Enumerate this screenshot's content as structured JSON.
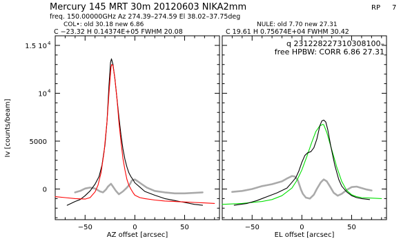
{
  "header": {
    "line1": "Mercury   145 MRT 30m   20120603 NIKA2mm",
    "rp_label": "RP",
    "rp_value": "7",
    "line2": "freq. 150.00000GHz  Az 274.39–274.59  El 38.02–37.75deg",
    "col_line": "COL•: old      30.18  new        6.86",
    "nule_line": "NULE: old        7.70  new        27.31",
    "left_fit": "C  −23.32           H   0.14374E+05        FWHM    20.08",
    "right_fit": "C   19.61           H   0.75674E+04        FWHM    30.42",
    "right_q": "q  231228227310308100–",
    "right_hpbw": "free HPBW: CORR    6.86    27.31"
  },
  "chart_data": [
    {
      "type": "line",
      "panel": "left",
      "xlabel": "AZ offset [arcsec]",
      "ylabel": "Iv [counts/beam]",
      "xlim": [
        -80,
        85
      ],
      "ylim": [
        -3200,
        16000
      ],
      "xticks": [
        -50,
        0,
        50
      ],
      "yticks": [
        {
          "value": 0,
          "label": "0"
        },
        {
          "value": 5000,
          "label": "5000"
        },
        {
          "value": 10000,
          "label": "10",
          "exp": "4"
        },
        {
          "value": 15000,
          "label": "1.5 10",
          "exp": "4"
        }
      ],
      "series": [
        {
          "color": "#aaaaaa",
          "width": 2.6,
          "x": [
            -60,
            -55,
            -50,
            -45,
            -40,
            -35,
            -32,
            -29,
            -27,
            -24,
            -22,
            -19,
            -16,
            -12,
            -8,
            -5,
            -3,
            0,
            3,
            7,
            12,
            20,
            30,
            40,
            50,
            60,
            68
          ],
          "y": [
            -350,
            -200,
            50,
            150,
            50,
            -250,
            -350,
            -50,
            250,
            550,
            250,
            -200,
            -550,
            -250,
            150,
            500,
            900,
            1000,
            800,
            500,
            150,
            -200,
            -350,
            -450,
            -450,
            -400,
            -350
          ]
        },
        {
          "color": "#000000",
          "width": 1.1,
          "x": [
            -68,
            -60,
            -55,
            -50,
            -45,
            -40,
            -36,
            -33,
            -30,
            -28,
            -26,
            -24.5,
            -23.5,
            -22,
            -20,
            -18,
            -16,
            -14,
            -12,
            -10,
            -8,
            -6,
            -4,
            -2,
            0,
            5,
            10,
            20,
            30,
            40,
            50,
            60,
            68
          ],
          "y": [
            -1700,
            -1300,
            -1100,
            -700,
            -200,
            500,
            1300,
            2500,
            4600,
            7000,
            10800,
            13200,
            13600,
            13000,
            11500,
            9500,
            7500,
            5700,
            4200,
            3100,
            2300,
            1700,
            1300,
            1000,
            650,
            200,
            -250,
            -650,
            -1000,
            -1200,
            -1400,
            -1600,
            -1700
          ]
        },
        {
          "color": "#ff0000",
          "width": 1.1,
          "x": [
            -80,
            -70,
            -60,
            -50,
            -45,
            -40,
            -37,
            -34,
            -31,
            -28,
            -26,
            -24,
            -23.3,
            -22,
            -20,
            -18,
            -16,
            -14,
            -12,
            -10,
            -8,
            -6,
            -4,
            -2,
            0,
            5,
            10,
            20,
            30,
            40,
            50,
            60,
            70,
            80
          ],
          "y": [
            -800,
            -900,
            -1000,
            -1050,
            -900,
            -300,
            400,
            1700,
            3800,
            7000,
            10000,
            12700,
            13000,
            12900,
            11500,
            9500,
            7000,
            5000,
            3200,
            2000,
            1000,
            400,
            0,
            -350,
            -650,
            -900,
            -1000,
            -1150,
            -1250,
            -1300,
            -1350,
            -1400,
            -1450,
            -1500
          ]
        }
      ]
    },
    {
      "type": "line",
      "panel": "right",
      "xlabel": "EL offset [arcsec]",
      "xlim": [
        -80,
        85
      ],
      "ylim": [
        -3200,
        16000
      ],
      "xticks": [
        -50,
        0,
        50
      ],
      "series": [
        {
          "color": "#aaaaaa",
          "width": 2.6,
          "x": [
            -70,
            -60,
            -50,
            -40,
            -30,
            -20,
            -15,
            -10,
            -7,
            -4,
            -1,
            1,
            4,
            8,
            12,
            15,
            19,
            22,
            25,
            28,
            32,
            36,
            40,
            45,
            50,
            55,
            60,
            65,
            70
          ],
          "y": [
            -300,
            -200,
            0,
            300,
            500,
            800,
            1100,
            1350,
            1300,
            900,
            -50,
            -500,
            -900,
            -1000,
            -600,
            0,
            700,
            1000,
            800,
            300,
            -400,
            -700,
            -500,
            -100,
            200,
            250,
            100,
            -50,
            -150
          ]
        },
        {
          "color": "#00e000",
          "width": 1.1,
          "x": [
            -80,
            -60,
            -40,
            -30,
            -20,
            -10,
            -5,
            0,
            5,
            10,
            14,
            18,
            21,
            22,
            25,
            30,
            35,
            40,
            45,
            50,
            55,
            60,
            70,
            80
          ],
          "y": [
            -1600,
            -1500,
            -1300,
            -1100,
            -700,
            100,
            900,
            2000,
            3400,
            4900,
            6000,
            6600,
            6750,
            6700,
            5900,
            4100,
            2300,
            800,
            -150,
            -600,
            -800,
            -900,
            -950,
            -1000
          ]
        },
        {
          "color": "#000000",
          "width": 1.1,
          "x": [
            -68,
            -55,
            -45,
            -35,
            -25,
            -15,
            -10,
            -6,
            -3,
            0,
            3,
            6,
            9,
            12,
            15,
            18,
            20,
            22,
            24,
            26,
            29,
            33,
            37,
            40,
            45,
            50,
            55,
            60,
            68
          ],
          "y": [
            -1700,
            -1500,
            -1200,
            -800,
            -400,
            100,
            700,
            1200,
            1900,
            2800,
            3500,
            3800,
            3900,
            4300,
            5200,
            6600,
            7100,
            7200,
            7000,
            6200,
            4500,
            2500,
            1000,
            300,
            -300,
            -700,
            -900,
            -1000,
            -1100
          ]
        }
      ]
    }
  ]
}
